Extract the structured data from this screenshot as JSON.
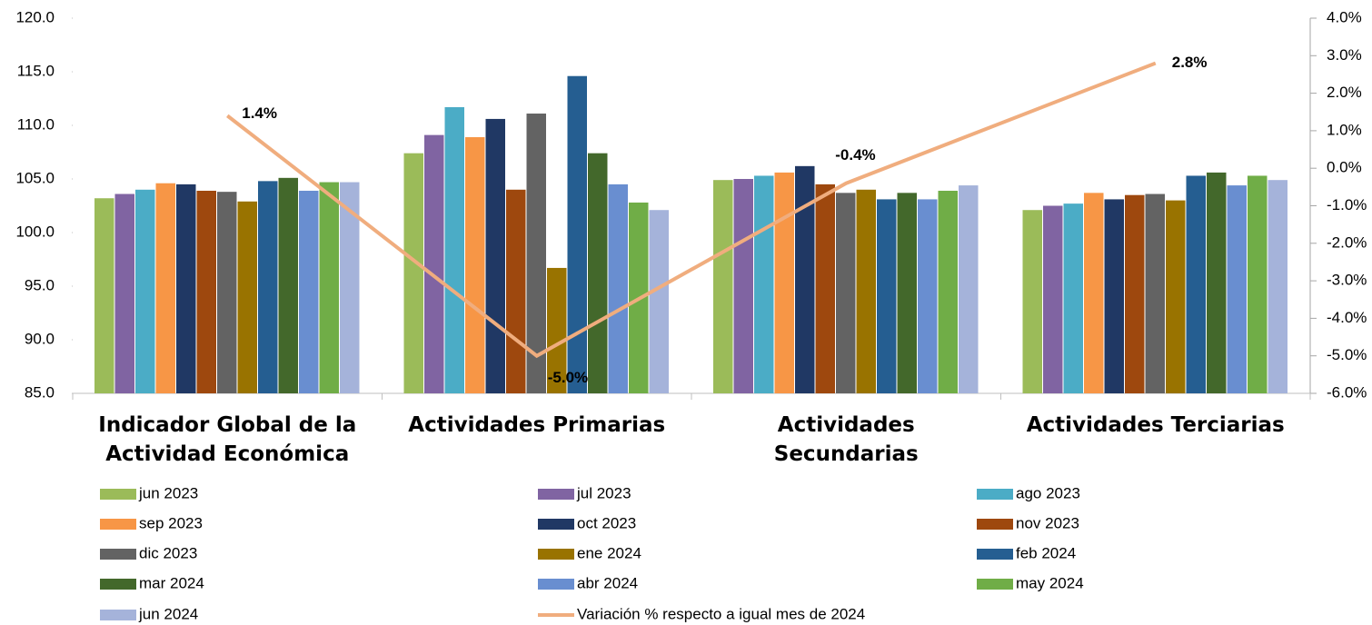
{
  "chart_data": {
    "type": "bar",
    "categories": [
      "Indicador Global de la Actividad Económica",
      "Actividades Primarias",
      "Actividades Secundarias",
      "Actividades Terciarias"
    ],
    "ylim": [
      85,
      120
    ],
    "yticks": [
      {
        "value": 85,
        "label": "85.0"
      },
      {
        "value": 90,
        "label": "90.0"
      },
      {
        "value": 95,
        "label": "95.0"
      },
      {
        "value": 100,
        "label": "100.0"
      },
      {
        "value": 105,
        "label": "105.0"
      },
      {
        "value": 110,
        "label": "110.0"
      },
      {
        "value": 115,
        "label": "115.0"
      },
      {
        "value": 120,
        "label": "120.0"
      }
    ],
    "y2lim": [
      -6,
      4
    ],
    "y2ticks": [
      {
        "value": -6,
        "label": "-6.0%"
      },
      {
        "value": -5,
        "label": "-5.0%"
      },
      {
        "value": -4,
        "label": "-4.0%"
      },
      {
        "value": -3,
        "label": "-3.0%"
      },
      {
        "value": -2,
        "label": "-2.0%"
      },
      {
        "value": -1,
        "label": "-1.0%"
      },
      {
        "value": 0,
        "label": "0.0%"
      },
      {
        "value": 1,
        "label": "1.0%"
      },
      {
        "value": 2,
        "label": "2.0%"
      },
      {
        "value": 3,
        "label": "3.0%"
      },
      {
        "value": 4,
        "label": "4.0%"
      }
    ],
    "series": [
      {
        "name": "jun 2023",
        "color": "#9bbb59",
        "values": [
          103.2,
          107.4,
          104.9,
          102.1
        ]
      },
      {
        "name": "jul 2023",
        "color": "#8064a2",
        "values": [
          103.6,
          109.1,
          105.0,
          102.5
        ]
      },
      {
        "name": "ago 2023",
        "color": "#4bacc6",
        "values": [
          104.0,
          111.7,
          105.3,
          102.7
        ]
      },
      {
        "name": "sep 2023",
        "color": "#f79646",
        "values": [
          104.6,
          108.9,
          105.6,
          103.7
        ]
      },
      {
        "name": "oct 2023",
        "color": "#203864",
        "values": [
          104.5,
          110.6,
          106.2,
          103.1
        ]
      },
      {
        "name": "nov 2023",
        "color": "#9e480e",
        "values": [
          103.9,
          104.0,
          104.5,
          103.5
        ]
      },
      {
        "name": "dic 2023",
        "color": "#636363",
        "values": [
          103.8,
          111.1,
          103.7,
          103.6
        ]
      },
      {
        "name": "ene 2024",
        "color": "#997300",
        "values": [
          102.9,
          96.7,
          104.0,
          103.0
        ]
      },
      {
        "name": "feb 2024",
        "color": "#255e91",
        "values": [
          104.8,
          114.6,
          103.1,
          105.3
        ]
      },
      {
        "name": "mar 2024",
        "color": "#43682b",
        "values": [
          105.1,
          107.4,
          103.7,
          105.6
        ]
      },
      {
        "name": "abr 2024",
        "color": "#698ed0",
        "values": [
          103.9,
          104.5,
          103.1,
          104.4
        ]
      },
      {
        "name": "may 2024",
        "color": "#70ad47",
        "values": [
          104.7,
          102.8,
          103.9,
          105.3
        ]
      },
      {
        "name": "jun 2024",
        "color": "#a5b3da",
        "values": [
          104.7,
          102.1,
          104.4,
          104.9
        ]
      },
      {
        "name": "Variación % respecto a igual mes de 2024",
        "type": "line",
        "axis": "y2",
        "color": "#f0ad7e",
        "values": [
          1.4,
          -5.0,
          -0.4,
          2.8
        ],
        "value_labels": [
          "1.4%",
          "-5.0%",
          "-0.4%",
          "2.8%"
        ]
      }
    ]
  }
}
